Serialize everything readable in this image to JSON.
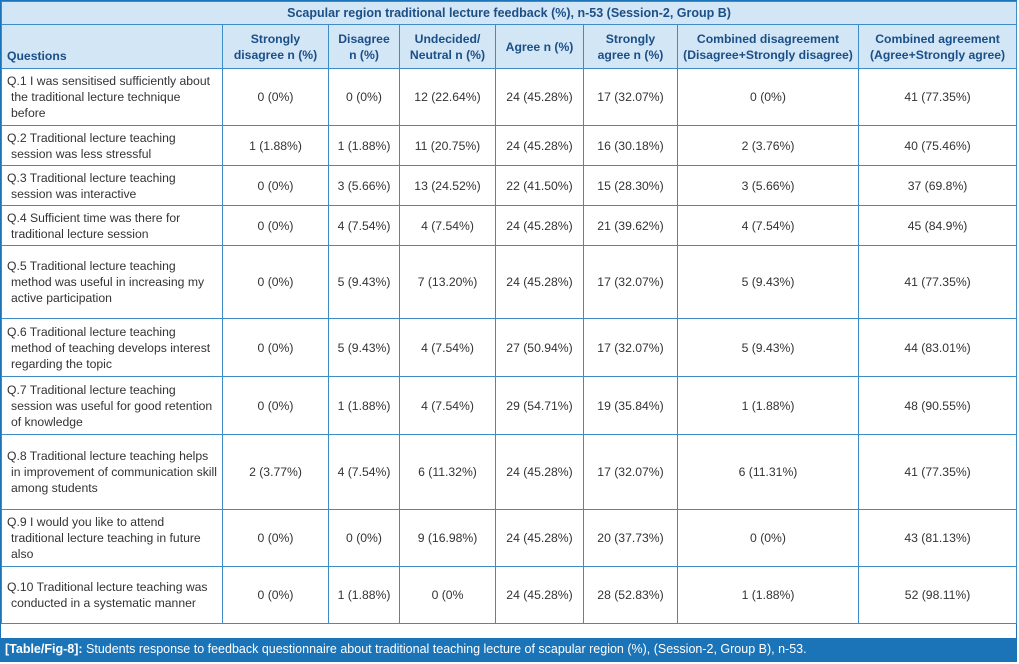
{
  "table": {
    "title": "Scapular region traditional lecture feedback (%), n-53 (Session-2, Group B)",
    "headers": [
      "Questions",
      "Strongly disagree n (%)",
      "Disagree n (%)",
      "Undecided/ Neutral n (%)",
      "Agree n (%)",
      "Strongly agree n (%)",
      "Combined disagreement (Disagree+Strongly disagree)",
      "Combined agreement (Agree+Strongly agree)"
    ],
    "rows": [
      {
        "q": "Q.1 I was sensitised sufficiently about the traditional lecture technique before",
        "sd": "0 (0%)",
        "d": "0 (0%)",
        "n": "12 (22.64%)",
        "a": "24 (45.28%)",
        "sa": "17 (32.07%)",
        "cd": "0 (0%)",
        "ca": "41 (77.35%)"
      },
      {
        "q": "Q.2 Traditional lecture teaching session was less stressful",
        "sd": "1 (1.88%)",
        "d": "1 (1.88%)",
        "n": "11 (20.75%)",
        "a": "24 (45.28%)",
        "sa": "16 (30.18%)",
        "cd": "2 (3.76%)",
        "ca": "40 (75.46%)"
      },
      {
        "q": "Q.3 Traditional lecture teaching session was interactive",
        "sd": "0 (0%)",
        "d": "3 (5.66%)",
        "n": "13 (24.52%)",
        "a": "22 (41.50%)",
        "sa": "15 (28.30%)",
        "cd": "3 (5.66%)",
        "ca": "37 (69.8%)"
      },
      {
        "q": "Q.4 Sufficient time was there for traditional lecture session",
        "sd": "0 (0%)",
        "d": "4 (7.54%)",
        "n": "4 (7.54%)",
        "a": "24 (45.28%)",
        "sa": "21 (39.62%)",
        "cd": "4 (7.54%)",
        "ca": "45 (84.9%)"
      },
      {
        "q": "Q.5 Traditional lecture teaching method was useful in increasing my active participation",
        "sd": "0 (0%)",
        "d": "5 (9.43%)",
        "n": "7 (13.20%)",
        "a": "24 (45.28%)",
        "sa": "17 (32.07%)",
        "cd": "5 (9.43%)",
        "ca": "41 (77.35%)"
      },
      {
        "q": "Q.6 Traditional lecture teaching method of teaching develops interest regarding the topic",
        "sd": "0 (0%)",
        "d": "5 (9.43%)",
        "n": "4 (7.54%)",
        "a": "27 (50.94%)",
        "sa": "17 (32.07%)",
        "cd": "5 (9.43%)",
        "ca": "44 (83.01%)"
      },
      {
        "q": "Q.7 Traditional lecture teaching session was useful for good retention of knowledge",
        "sd": "0 (0%)",
        "d": "1 (1.88%)",
        "n": "4 (7.54%)",
        "a": "29 (54.71%)",
        "sa": "19 (35.84%)",
        "cd": "1 (1.88%)",
        "ca": "48 (90.55%)"
      },
      {
        "q": "Q.8 Traditional lecture teaching helps in improvement of communication skill among students",
        "sd": "2 (3.77%)",
        "d": "4 (7.54%)",
        "n": "6 (11.32%)",
        "a": "24 (45.28%)",
        "sa": "17 (32.07%)",
        "cd": "6 (11.31%)",
        "ca": "41 (77.35%)"
      },
      {
        "q": "Q.9 I would you like to attend traditional lecture teaching in future also",
        "sd": "0 (0%)",
        "d": "0 (0%)",
        "n": "9 (16.98%)",
        "a": "24 (45.28%)",
        "sa": "20 (37.73%)",
        "cd": "0 (0%)",
        "ca": "43 (81.13%)"
      },
      {
        "q": "Q.10 Traditional lecture teaching was conducted in a systematic manner",
        "sd": "0 (0%)",
        "d": "1 (1.88%)",
        "n": "0 (0%",
        "a": "24 (45.28%)",
        "sa": "28 (52.83%)",
        "cd": "1 (1.88%)",
        "ca": "52 (98.11%)"
      }
    ]
  },
  "caption": {
    "tag": "[Table/Fig-8]:",
    "text": " Students response to feedback questionnaire about traditional teaching lecture of scapular region (%), (Session-2, Group B), n-53."
  },
  "colors": {
    "border": "#3d8cc7",
    "header_bg": "#d3e6f5",
    "header_text": "#1b4f88",
    "caption_bg": "#1b74b8"
  }
}
